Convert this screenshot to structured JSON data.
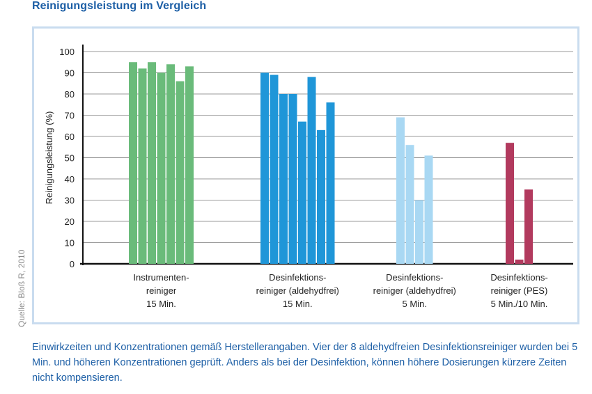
{
  "title": "Reinigungsleistung im Vergleich",
  "source": "Quelle: Bloß R, 2010",
  "caption": "Einwirkzeiten und Konzentrationen gemäß Herstellerangaben. Vier der 8 aldehydfreien Desinfektionsreiniger wurden bei  5 Min. und höheren Konzentrationen geprüft. Anders als bei der Desinfektion, können höhere Dosierungen kürzere Zeiten nicht kompensieren.",
  "chart_data": {
    "type": "bar",
    "ylabel": "Reinigungsleistung (%)",
    "ylim": [
      0,
      100
    ],
    "yticks": [
      0,
      10,
      20,
      30,
      40,
      50,
      60,
      70,
      80,
      90,
      100
    ],
    "grid": true,
    "groups": [
      {
        "label_lines": [
          "Instrumenten-",
          "reiniger",
          "15 Min."
        ],
        "color": "#6abb7a",
        "values": [
          95,
          92,
          95,
          90,
          94,
          86,
          93
        ]
      },
      {
        "label_lines": [
          "Desinfektions-",
          "reiniger (aldehydfrei)",
          "15 Min."
        ],
        "color": "#1f96d8",
        "values": [
          90,
          89,
          80,
          80,
          67,
          88,
          63,
          76
        ]
      },
      {
        "label_lines": [
          "Desinfektions-",
          "reiniger (aldehydfrei)",
          "5 Min."
        ],
        "color": "#a9d8f3",
        "values": [
          69,
          56,
          30,
          51
        ]
      },
      {
        "label_lines": [
          "Desinfektions-",
          "reiniger (PES)",
          "5 Min./10 Min."
        ],
        "color": "#b23a5e",
        "values": [
          57,
          2,
          35
        ]
      }
    ]
  }
}
